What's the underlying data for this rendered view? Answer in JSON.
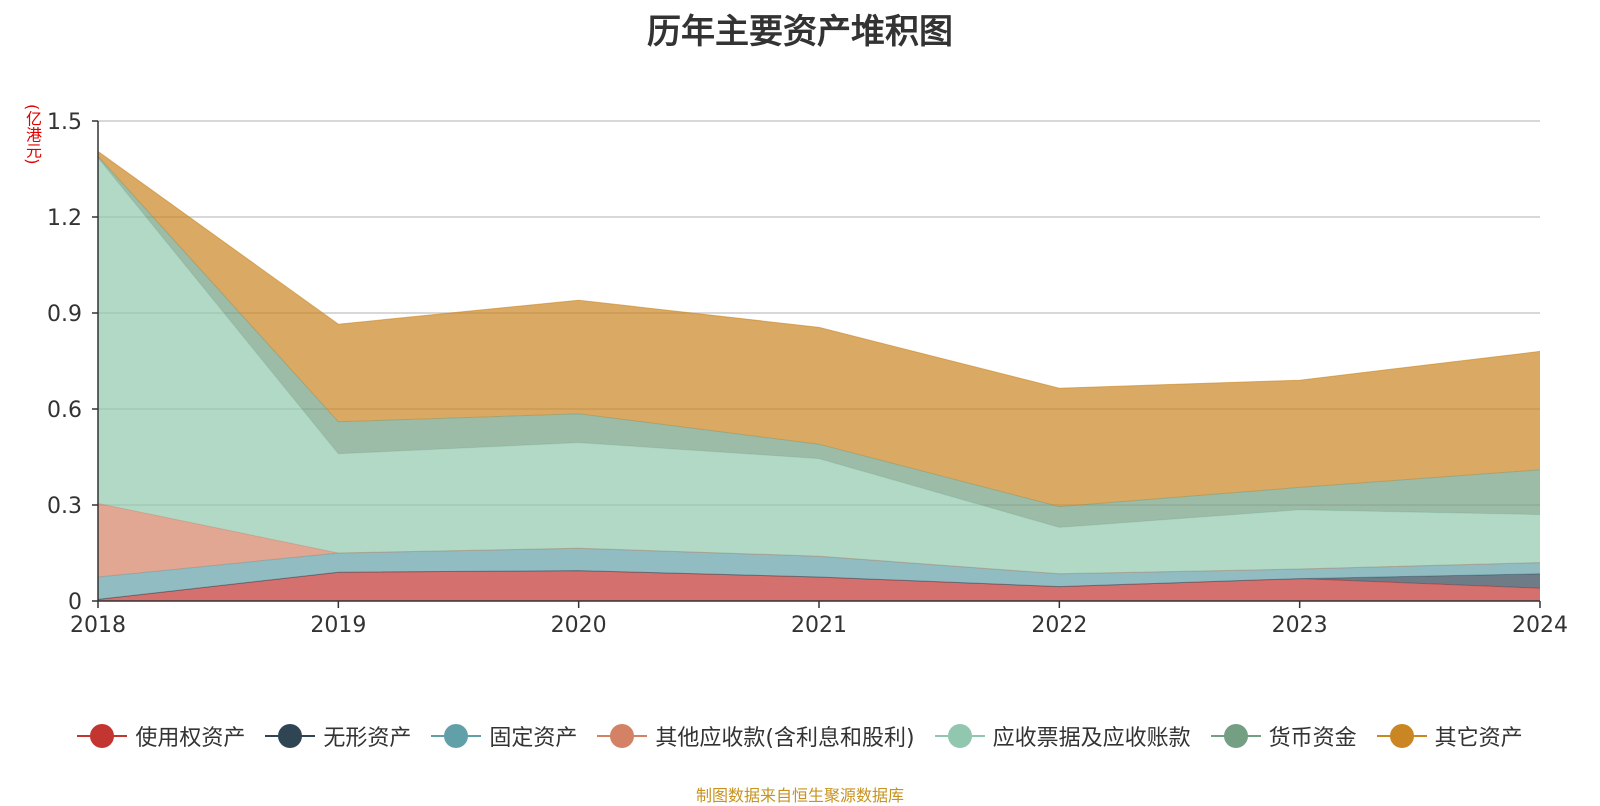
{
  "chart_data": {
    "type": "area",
    "stacked": true,
    "title": "历年主要资产堆积图",
    "ylabel": "(亿港元)",
    "xlabel": "",
    "categories": [
      "2018",
      "2019",
      "2020",
      "2021",
      "2022",
      "2023",
      "2024"
    ],
    "ylim": [
      0,
      1.5
    ],
    "yticks": [
      "0",
      "0.3",
      "0.6",
      "0.9",
      "1.2",
      "1.5"
    ],
    "ytick_values": [
      0,
      0.3,
      0.6,
      0.9,
      1.2,
      1.5
    ],
    "grid": true,
    "legend_position": "bottom",
    "series": [
      {
        "name": "使用权资产",
        "color": "#c23531",
        "values": [
          0.005,
          0.09,
          0.095,
          0.075,
          0.045,
          0.07,
          0.04
        ]
      },
      {
        "name": "无形资产",
        "color": "#2f4554",
        "values": [
          0,
          0,
          0,
          0,
          0,
          0,
          0.045
        ]
      },
      {
        "name": "固定资产",
        "color": "#61a0a8",
        "values": [
          0.07,
          0.06,
          0.07,
          0.065,
          0.04,
          0.03,
          0.035
        ]
      },
      {
        "name": "其他应收款(含利息和股利)",
        "color": "#d48265",
        "values": [
          0.23,
          0,
          0,
          0,
          0,
          0,
          0
        ]
      },
      {
        "name": "应收票据及应收账款",
        "color": "#91c7ae",
        "values": [
          1.08,
          0.31,
          0.33,
          0.305,
          0.145,
          0.185,
          0.15
        ]
      },
      {
        "name": "货币资金",
        "color": "#749f83",
        "values": [
          0.005,
          0.1,
          0.09,
          0.045,
          0.065,
          0.07,
          0.14
        ]
      },
      {
        "name": "其它资产",
        "color": "#ca8622",
        "values": [
          0.015,
          0.305,
          0.355,
          0.365,
          0.37,
          0.335,
          0.37
        ]
      }
    ]
  },
  "source_note": "制图数据来自恒生聚源数据库"
}
